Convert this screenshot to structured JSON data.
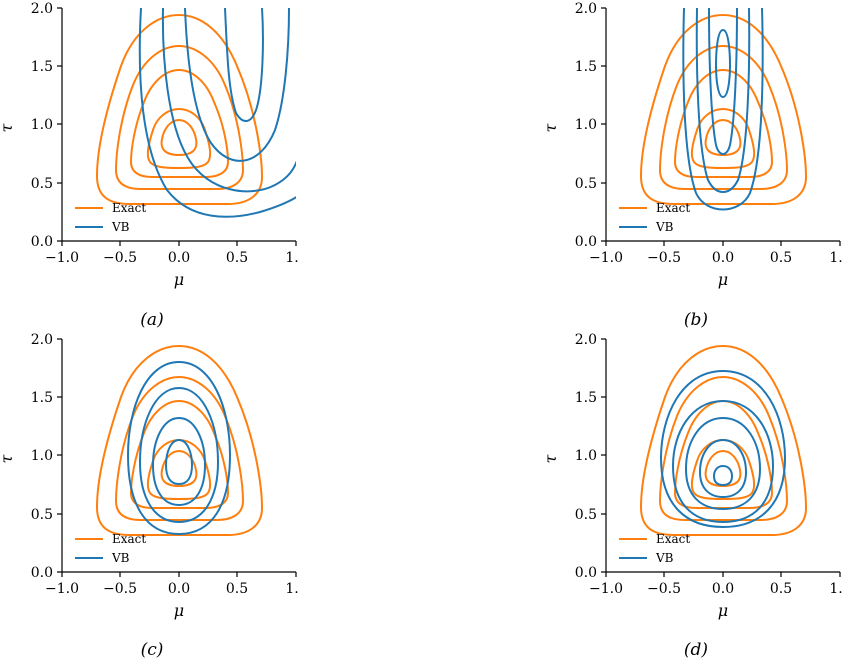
{
  "colors": {
    "exact": "#ff7f0e",
    "vb": "#1f77b4",
    "axis": "#000000"
  },
  "chart_data": [
    {
      "type": "contour",
      "caption": "(a)",
      "xlabel": "μ",
      "ylabel": "τ",
      "xlim": [
        -1.0,
        1.0
      ],
      "ylim": [
        0.0,
        2.0
      ],
      "xticks": [
        "−1.0",
        "−0.5",
        "0.0",
        "0.5",
        "1."
      ],
      "yticks": [
        "0.0",
        "0.5",
        "1.0",
        "1.5",
        "2.0"
      ],
      "legend": [
        "Exact",
        "VB"
      ],
      "legend_position": "lower-left",
      "series": [
        {
          "name": "Exact",
          "color": "#ff7f0e",
          "contour_levels": 5
        },
        {
          "name": "VB",
          "color": "#1f77b4",
          "contour_levels": 4,
          "center": [
            0.5,
            2.0
          ]
        }
      ]
    },
    {
      "type": "contour",
      "caption": "(b)",
      "xlabel": "μ",
      "ylabel": "τ",
      "xlim": [
        -1.0,
        1.0
      ],
      "ylim": [
        0.0,
        2.0
      ],
      "xticks": [
        "−1.0",
        "−0.5",
        "0.0",
        "0.5",
        "1."
      ],
      "yticks": [
        "0.0",
        "0.5",
        "1.0",
        "1.5",
        "2.0"
      ],
      "legend": [
        "Exact",
        "VB"
      ],
      "legend_position": "lower-left",
      "series": [
        {
          "name": "Exact",
          "color": "#ff7f0e",
          "contour_levels": 5
        },
        {
          "name": "VB",
          "color": "#1f77b4",
          "contour_levels": 4,
          "center": [
            0.0,
            1.5
          ]
        }
      ]
    },
    {
      "type": "contour",
      "caption": "(c)",
      "xlabel": "μ",
      "ylabel": "τ",
      "xlim": [
        -1.0,
        1.0
      ],
      "ylim": [
        0.0,
        2.0
      ],
      "xticks": [
        "−1.0",
        "−0.5",
        "0.0",
        "0.5",
        "1."
      ],
      "yticks": [
        "0.0",
        "0.5",
        "1.0",
        "1.5",
        "2.0"
      ],
      "legend": [
        "Exact",
        "VB"
      ],
      "legend_position": "lower-left",
      "series": [
        {
          "name": "Exact",
          "color": "#ff7f0e",
          "contour_levels": 5
        },
        {
          "name": "VB",
          "color": "#1f77b4",
          "contour_levels": 4,
          "center": [
            0.0,
            0.9
          ]
        }
      ]
    },
    {
      "type": "contour",
      "caption": "(d)",
      "xlabel": "μ",
      "ylabel": "τ",
      "xlim": [
        -1.0,
        1.0
      ],
      "ylim": [
        0.0,
        2.0
      ],
      "xticks": [
        "−1.0",
        "−0.5",
        "0.0",
        "0.5",
        "1."
      ],
      "yticks": [
        "0.0",
        "0.5",
        "1.0",
        "1.5",
        "2.0"
      ],
      "legend": [
        "Exact",
        "VB"
      ],
      "legend_position": "lower-left",
      "series": [
        {
          "name": "Exact",
          "color": "#ff7f0e",
          "contour_levels": 5
        },
        {
          "name": "VB",
          "color": "#1f77b4",
          "contour_levels": 5,
          "center": [
            0.0,
            0.85
          ]
        }
      ]
    }
  ]
}
